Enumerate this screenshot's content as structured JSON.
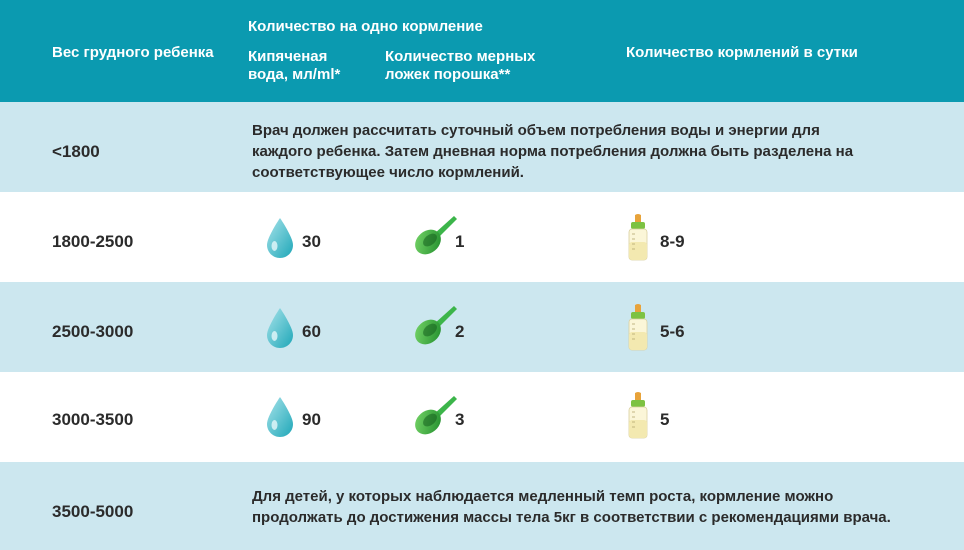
{
  "header": {
    "weight_label": "Вес грудного ребенка",
    "per_feed_label": "Количество на одно кормление",
    "water_label_line1": "Кипяченая",
    "water_label_line2": "вода, мл/ml*",
    "scoops_label_line1": "Количество мерных",
    "scoops_label_line2": "ложек порошка**",
    "feeds_label": "Количество кормлений в сутки"
  },
  "rows": [
    {
      "weight": "<1800",
      "note_line1": "Врач должен рассчитать суточный объем потребления воды и энергии для",
      "note_line2": "каждого ребенка. Затем дневная норма потребления должна быть разделена на",
      "note_line3": "соответствующее число кормлений."
    },
    {
      "weight": "1800-2500",
      "water": "30",
      "scoops": "1",
      "feeds": "8-9"
    },
    {
      "weight": "2500-3000",
      "water": "60",
      "scoops": "2",
      "feeds": "5-6"
    },
    {
      "weight": "3000-3500",
      "water": "90",
      "scoops": "3",
      "feeds": "5"
    },
    {
      "weight": "3500-5000",
      "note_line1": "Для детей, у которых наблюдается медленный темп роста, кормление можно",
      "note_line2": "продолжать до достижения массы тела 5кг в соответствии с рекомендациями врача."
    }
  ],
  "icons": {
    "water": "water-drop-icon",
    "scoop": "measuring-scoop-icon",
    "bottle": "baby-bottle-icon"
  },
  "colors": {
    "header_bg": "#0b9ab0",
    "row_light": "#cce7ef",
    "drop": "#3fb8c8",
    "scoop": "#2fa83a",
    "bottle_nipple": "#e8a33a",
    "bottle_cap": "#7dc242"
  }
}
